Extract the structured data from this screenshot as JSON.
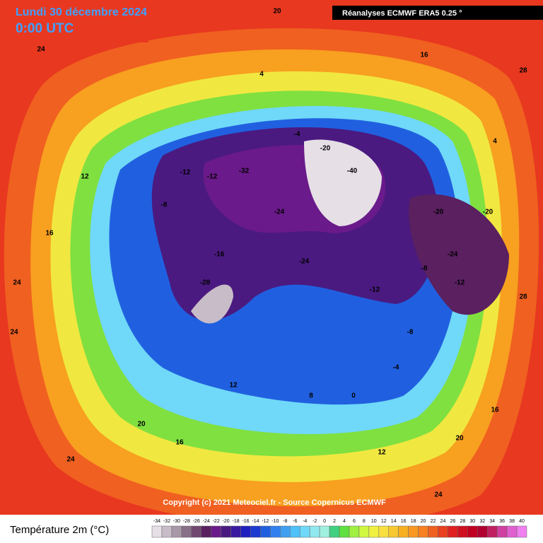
{
  "header": {
    "date": "Lundi 30 décembre 2024",
    "time": "0:00 UTC",
    "source": "Réanalyses ECMWF ERA5 0.25 °"
  },
  "copyright": "Copyright (c) 2021 Meteociel.fr - Source Copernicus ECMWF",
  "legend": {
    "title": "Température 2m (°C)",
    "ticks": [
      -34,
      -32,
      -30,
      -28,
      -26,
      -24,
      -22,
      -20,
      -18,
      -16,
      -14,
      -12,
      -10,
      -8,
      -6,
      -4,
      -2,
      0,
      2,
      4,
      6,
      8,
      10,
      12,
      14,
      16,
      18,
      20,
      22,
      24,
      26,
      28,
      30,
      32,
      34,
      36,
      38,
      40
    ],
    "colors": [
      "#e6e0e6",
      "#c8bcc8",
      "#a898a8",
      "#887088",
      "#704870",
      "#5a2060",
      "#6a1a8a",
      "#4a1a80",
      "#3a1aa0",
      "#2020c0",
      "#1a3ad0",
      "#2060e0",
      "#3080f0",
      "#40a0f0",
      "#50c0f8",
      "#70d8f8",
      "#90e8f0",
      "#a0f0e0",
      "#40d080",
      "#60e040",
      "#a0f040",
      "#d0f840",
      "#f0f040",
      "#f8e040",
      "#f8c830",
      "#f8b020",
      "#f89820",
      "#f88020",
      "#f06020",
      "#e84020",
      "#e02020",
      "#d01020",
      "#c00020",
      "#b00030",
      "#c02060",
      "#d040a0",
      "#e060d0",
      "#f080f0"
    ]
  },
  "map_labels": [
    "20",
    "24",
    "28",
    "24",
    "16",
    "4",
    "-4",
    "-12",
    "-20",
    "-24",
    "-32",
    "-40",
    "-24",
    "-28",
    "-8",
    "-12",
    "-16",
    "-20",
    "-24",
    "-12",
    "-8",
    "-4",
    "0",
    "8",
    "12",
    "16",
    "20",
    "24",
    "20",
    "12",
    "16",
    "24",
    "-12",
    "-20",
    "-8",
    "4",
    "12",
    "16",
    "24",
    "28"
  ]
}
